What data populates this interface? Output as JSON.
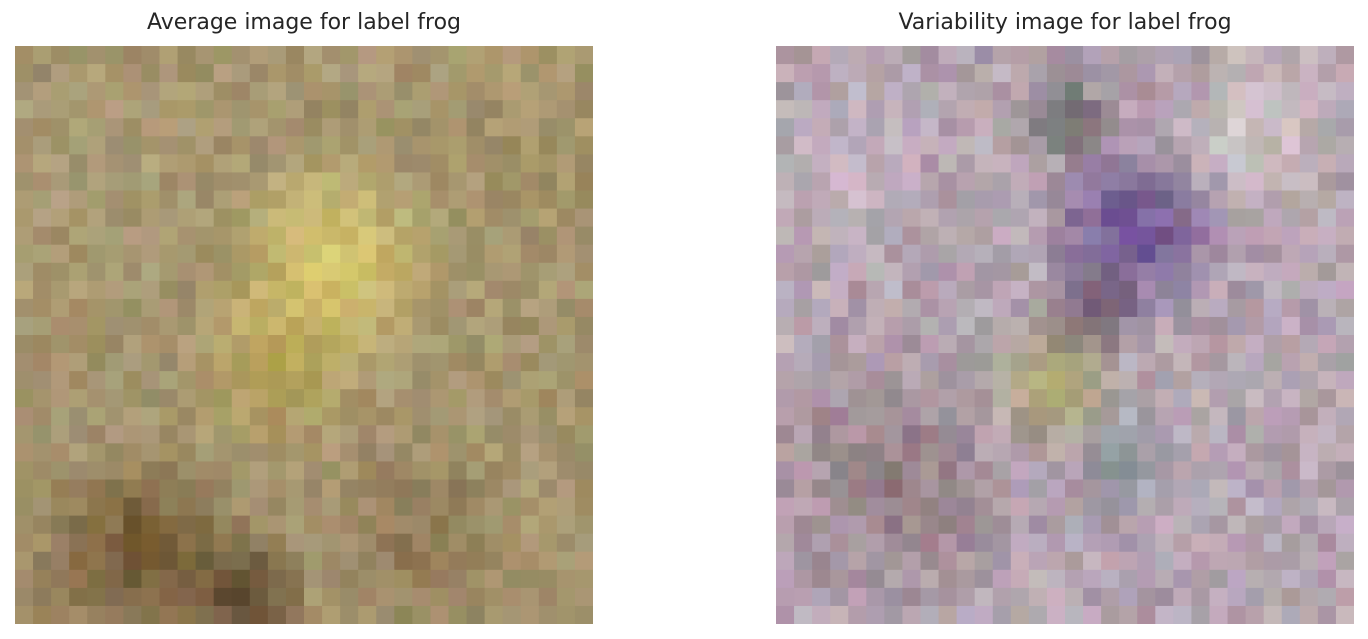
{
  "chart_data": [
    {
      "type": "heatmap",
      "title": "Average image for label frog",
      "rows": 32,
      "cols": 32,
      "palette": {
        "base": "#a69670",
        "blobs": [
          {
            "cx": 0.55,
            "cy": 0.38,
            "r": 0.22,
            "color": "#e8d870",
            "w": 0.85
          },
          {
            "cx": 0.45,
            "cy": 0.55,
            "r": 0.18,
            "color": "#c8b048",
            "w": 0.6
          },
          {
            "cx": 0.22,
            "cy": 0.88,
            "r": 0.22,
            "color": "#5a3a18",
            "w": 0.75
          },
          {
            "cx": 0.4,
            "cy": 0.95,
            "r": 0.12,
            "color": "#3a2610",
            "w": 0.8
          },
          {
            "cx": 0.7,
            "cy": 0.85,
            "r": 0.2,
            "color": "#6a4e30",
            "w": 0.4
          },
          {
            "cx": 0.12,
            "cy": 0.2,
            "r": 0.2,
            "color": "#b2a682",
            "w": 0.4
          },
          {
            "cx": 0.85,
            "cy": 0.2,
            "r": 0.2,
            "color": "#a49060",
            "w": 0.4
          }
        ],
        "noise": 28,
        "seed": 17
      }
    },
    {
      "type": "heatmap",
      "title": "Variability image for label frog",
      "rows": 32,
      "cols": 32,
      "palette": {
        "base": "#b4a4b0",
        "blobs": [
          {
            "cx": 0.62,
            "cy": 0.32,
            "r": 0.18,
            "color": "#5a3c88",
            "w": 0.85
          },
          {
            "cx": 0.48,
            "cy": 0.58,
            "r": 0.14,
            "color": "#a0a048",
            "w": 0.75
          },
          {
            "cx": 0.55,
            "cy": 0.45,
            "r": 0.1,
            "color": "#3a2030",
            "w": 0.6
          },
          {
            "cx": 0.5,
            "cy": 0.12,
            "r": 0.1,
            "color": "#404a4a",
            "w": 0.7
          },
          {
            "cx": 0.2,
            "cy": 0.75,
            "r": 0.25,
            "color": "#7a5a58",
            "w": 0.5
          },
          {
            "cx": 0.6,
            "cy": 0.72,
            "r": 0.1,
            "color": "#5c7a88",
            "w": 0.55
          },
          {
            "cx": 0.85,
            "cy": 0.12,
            "r": 0.2,
            "color": "#e2ddd2",
            "w": 0.55
          },
          {
            "cx": 0.1,
            "cy": 0.2,
            "r": 0.18,
            "color": "#d6c8d8",
            "w": 0.55
          }
        ],
        "noise": 38,
        "seed": 91
      }
    }
  ]
}
